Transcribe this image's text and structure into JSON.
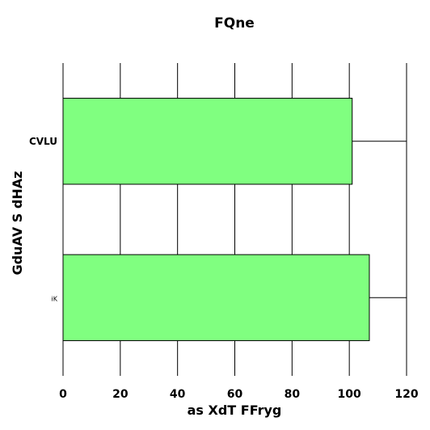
{
  "chart_data": {
    "type": "bar",
    "orientation": "horizontal",
    "title": "FQne",
    "xlabel": "as XdT FFryg",
    "ylabel": "GduAV S dHAz",
    "categories": [
      "CVLU",
      "iK"
    ],
    "values": [
      101,
      107
    ],
    "error_upper": [
      120,
      120
    ],
    "xlim": [
      0,
      120
    ],
    "xticks": [
      0,
      20,
      40,
      60,
      80,
      100,
      120
    ],
    "grid": true,
    "colors": {
      "bar_fill": "#80ff80",
      "bar_stroke": "#000000"
    }
  }
}
